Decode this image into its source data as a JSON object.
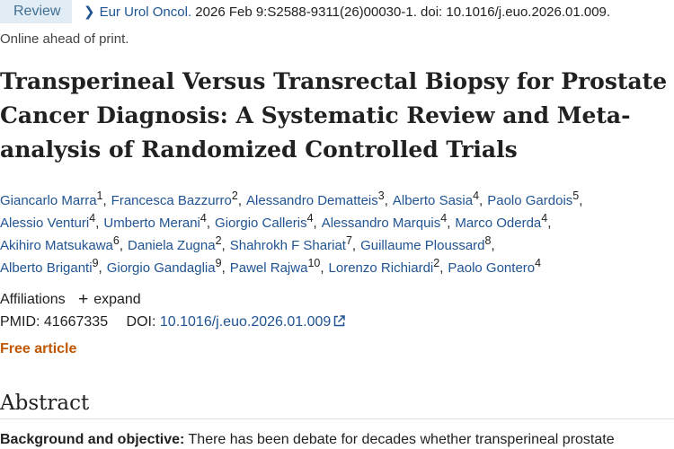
{
  "badge": "Review",
  "citation": {
    "journal": "Eur Urol Oncol.",
    "rest": " 2026 Feb 9:S2588-9311(26)00030-1. doi: 10.1016/j.euo.2026.01.009."
  },
  "online_status": "Online ahead of print.",
  "title": "Transperineal Versus Transrectal Biopsy for Prostate Cancer Diagnosis: A Systematic Review and Meta-analysis of Randomized Controlled Trials",
  "author_lines": [
    [
      {
        "name": "Giancarlo Marra",
        "sup": "1"
      },
      {
        "name": "Francesca Bazzurro",
        "sup": "2"
      },
      {
        "name": "Alessandro Dematteis",
        "sup": "3"
      },
      {
        "name": "Alberto Sasia",
        "sup": "4"
      },
      {
        "name": "Paolo Gardois",
        "sup": "5"
      }
    ],
    [
      {
        "name": "Alessio Venturi",
        "sup": "4"
      },
      {
        "name": "Umberto Merani",
        "sup": "4"
      },
      {
        "name": "Giorgio Calleris",
        "sup": "4"
      },
      {
        "name": "Alessandro Marquis",
        "sup": "4"
      },
      {
        "name": "Marco Oderda",
        "sup": "4"
      }
    ],
    [
      {
        "name": "Akihiro Matsukawa",
        "sup": "6"
      },
      {
        "name": "Daniela Zugna",
        "sup": "2"
      },
      {
        "name": "Shahrokh F Shariat",
        "sup": "7"
      },
      {
        "name": "Guillaume Ploussard",
        "sup": "8"
      }
    ],
    [
      {
        "name": "Alberto Briganti",
        "sup": "9"
      },
      {
        "name": "Giorgio Gandaglia",
        "sup": "9"
      },
      {
        "name": "Pawel Rajwa",
        "sup": "10"
      },
      {
        "name": "Lorenzo Richiardi",
        "sup": "2"
      },
      {
        "name": "Paolo Gontero",
        "sup": "4"
      }
    ]
  ],
  "affiliations": {
    "label": "Affiliations",
    "plus": "+",
    "expand": "expand"
  },
  "ids": {
    "pmid_label": "PMID:",
    "pmid": "41667335",
    "doi_label": "DOI:",
    "doi": "10.1016/j.euo.2026.01.009"
  },
  "free_article": "Free article",
  "abstract_heading": "Abstract",
  "background": {
    "label": "Background and objective:",
    "text": " There has been debate for decades whether transperineal prostate"
  },
  "colors": {
    "link": "#205493",
    "free": "#c05600",
    "badge_bg": "#e2ecf4"
  },
  "icons": {
    "chevron": "chevron-right-icon",
    "external": "external-link-icon"
  }
}
